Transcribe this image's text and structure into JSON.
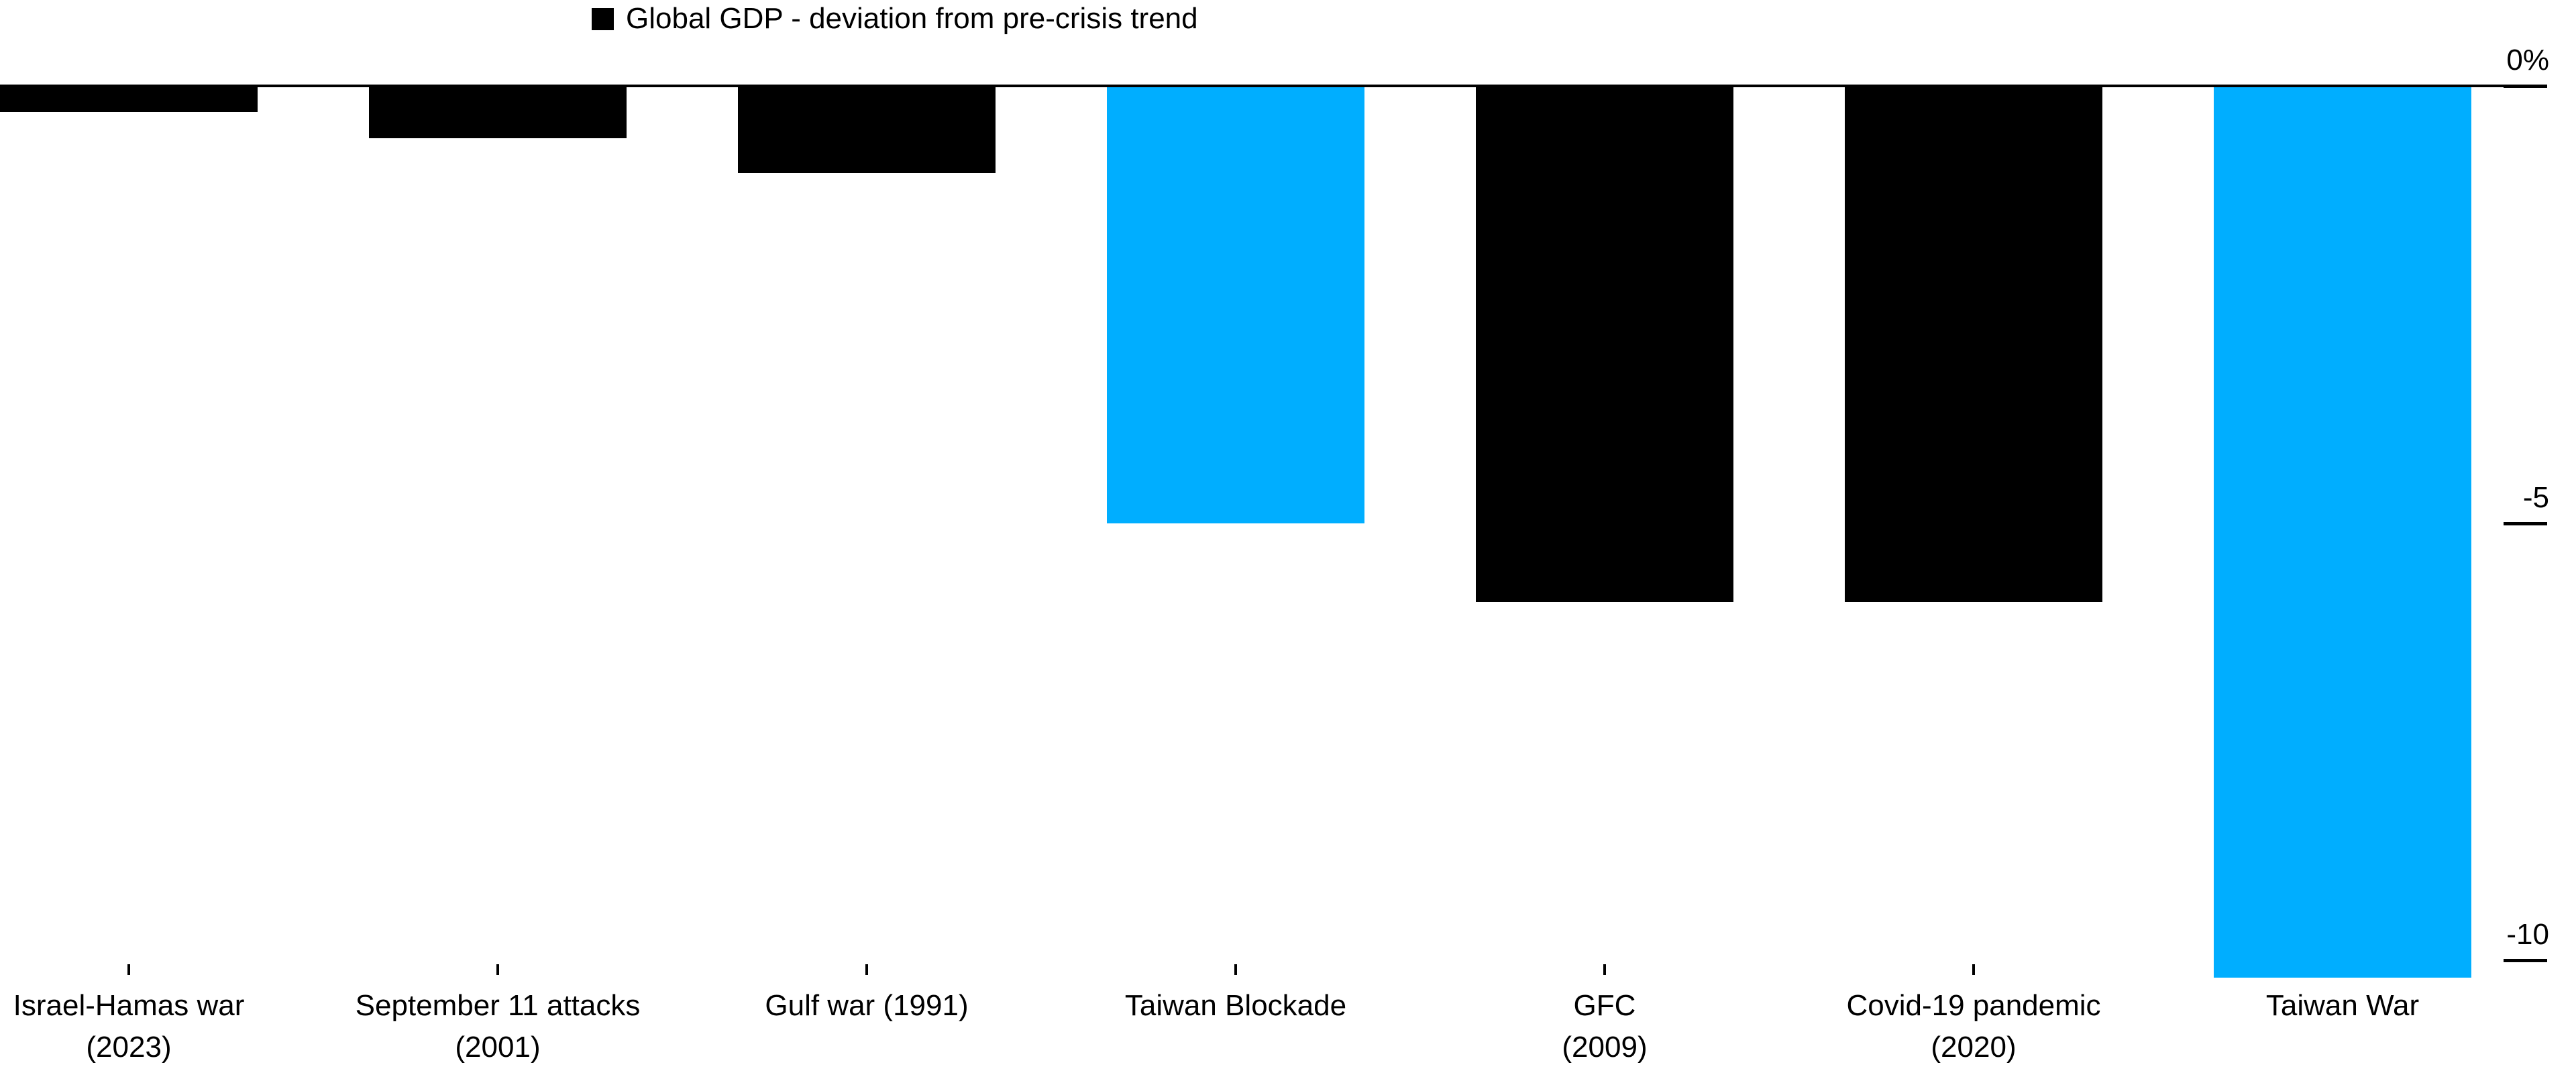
{
  "legend": {
    "swatch_color": "#000000",
    "label": "Global GDP - deviation from pre-crisis trend"
  },
  "colors": {
    "background": "#FFFFFF",
    "text": "#000000",
    "axis": "#000000",
    "bar_default": "#000000",
    "bar_highlight": "#00AEFF"
  },
  "chart_data": {
    "type": "bar",
    "title": "Global GDP - deviation from pre-crisis trend",
    "xlabel": "",
    "ylabel": "",
    "unit": "%",
    "orientation": "vertical",
    "grid": false,
    "legend_position": "top",
    "y_axis_side": "right",
    "ylim": [
      -10.5,
      0
    ],
    "categories": [
      "Israel-Hamas war (2023)",
      "September 11 attacks (2001)",
      "Gulf war (1991)",
      "Taiwan Blockade",
      "GFC (2009)",
      "Covid-19 pandemic (2020)",
      "Taiwan War"
    ],
    "category_lines": [
      [
        "Israel-Hamas war",
        "(2023)"
      ],
      [
        "September 11 attacks",
        "(2001)"
      ],
      [
        "Gulf war (1991)"
      ],
      [
        "Taiwan Blockade"
      ],
      [
        "GFC",
        "(2009)"
      ],
      [
        "Covid-19 pandemic",
        "(2020)"
      ],
      [
        "Taiwan War"
      ]
    ],
    "series": [
      {
        "name": "Global GDP - deviation from pre-crisis trend",
        "values": [
          -0.3,
          -0.6,
          -1.0,
          -5.0,
          -5.9,
          -5.9,
          -10.2
        ]
      }
    ],
    "bar_colors": [
      "#000000",
      "#000000",
      "#000000",
      "#00AEFF",
      "#000000",
      "#000000",
      "#00AEFF"
    ],
    "y_ticks": [
      {
        "label": "0%",
        "value": 0
      },
      {
        "label": "-5",
        "value": -5
      },
      {
        "label": "-10",
        "value": -10
      }
    ]
  }
}
